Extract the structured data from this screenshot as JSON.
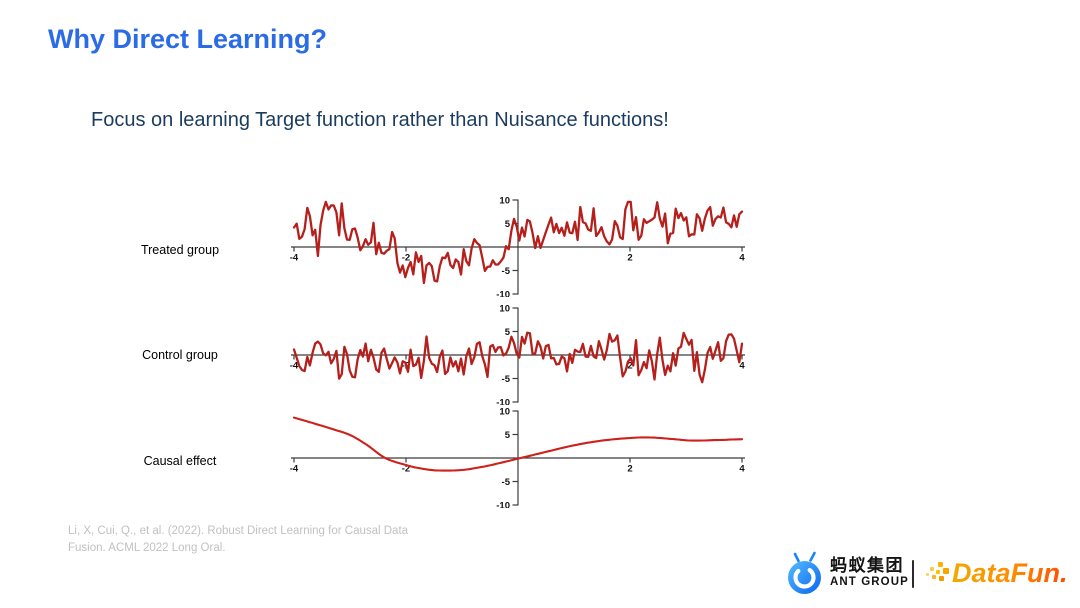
{
  "slide": {
    "title": "Why Direct Learning?",
    "subtitle": "Focus on learning Target function rather than Nuisance functions!",
    "citation": {
      "line1": "Li, X, Cui, Q., et al. (2022). Robust Direct Learning for Causal Data",
      "line2": "Fusion. ACML 2022 Long Oral."
    }
  },
  "footer": {
    "ant_group_cn": "蚂蚁集团",
    "ant_group_en": "ANT GROUP",
    "divider": "|",
    "datafun": "DataFun."
  },
  "colors": {
    "title_blue": "#2B6BE6",
    "subtitle_navy": "#1B3C5F",
    "noisy_line_red": "#B5201C",
    "causal_line_red": "#CE211B",
    "axis_gray": "#3C3C3C",
    "tick_label": "#141414",
    "citation_gray": "#C1C1C1"
  },
  "chart_data": [
    {
      "type": "line",
      "label": "Treated group",
      "x_range": [
        -4,
        4
      ],
      "y_range": [
        -10,
        10
      ],
      "x_ticks": [
        -4,
        -2,
        2,
        4
      ],
      "y_ticks": [
        10,
        5,
        -5,
        -10
      ],
      "color": "#B5201C",
      "noise_sd": 2.4,
      "smooth": false,
      "trend": [
        [
          -4,
          6.3
        ],
        [
          -3.6,
          6.6
        ],
        [
          -3.2,
          5.0
        ],
        [
          -2.9,
          3.0
        ],
        [
          -2.6,
          0.5
        ],
        [
          -2.3,
          -1.8
        ],
        [
          -1.9,
          -2.8
        ],
        [
          -1.5,
          -3.6
        ],
        [
          -1.1,
          -4.0
        ],
        [
          -0.7,
          -3.2
        ],
        [
          -0.4,
          -1.2
        ],
        [
          -0.1,
          1.8
        ],
        [
          0.1,
          3.2
        ],
        [
          0.5,
          3.0
        ],
        [
          0.9,
          3.6
        ],
        [
          1.3,
          4.2
        ],
        [
          1.7,
          4.4
        ],
        [
          2.1,
          4.6
        ],
        [
          2.5,
          4.8
        ],
        [
          2.9,
          5.2
        ],
        [
          3.3,
          5.6
        ],
        [
          3.7,
          4.2
        ],
        [
          4,
          4.6
        ]
      ]
    },
    {
      "type": "line",
      "label": "Control group",
      "x_range": [
        -4,
        4
      ],
      "y_range": [
        -10,
        10
      ],
      "x_ticks": [
        -4,
        -2,
        2,
        4
      ],
      "y_ticks": [
        10,
        5,
        -5,
        -10
      ],
      "color": "#B5201C",
      "noise_sd": 2.3,
      "smooth": false,
      "trend": [
        [
          -4,
          -0.3
        ],
        [
          -3.5,
          0.4
        ],
        [
          -3,
          -0.6
        ],
        [
          -2.5,
          -0.8
        ],
        [
          -2,
          -1.2
        ],
        [
          -1.5,
          -1.0
        ],
        [
          -1,
          -0.6
        ],
        [
          -0.5,
          0.2
        ],
        [
          -0.1,
          1.2
        ],
        [
          0.3,
          0.8
        ],
        [
          0.8,
          0.2
        ],
        [
          1.3,
          0.5
        ],
        [
          1.8,
          0.3
        ],
        [
          2.3,
          0.4
        ],
        [
          2.8,
          0.6
        ],
        [
          3.3,
          1.0
        ],
        [
          3.7,
          0.2
        ],
        [
          4,
          -0.4
        ]
      ]
    },
    {
      "type": "line",
      "label": "Causal effect",
      "x_range": [
        -4,
        4
      ],
      "y_range": [
        -10,
        10
      ],
      "x_ticks": [
        -4,
        -2,
        2,
        4
      ],
      "y_ticks": [
        10,
        5,
        -5,
        -10
      ],
      "color": "#CE211B",
      "noise_sd": 0,
      "smooth": true,
      "trend": [
        [
          -4,
          8.6
        ],
        [
          -3.6,
          7.2
        ],
        [
          -3.3,
          6.1
        ],
        [
          -3.0,
          4.9
        ],
        [
          -2.7,
          2.8
        ],
        [
          -2.37,
          0
        ],
        [
          -2.0,
          -1.5
        ],
        [
          -1.7,
          -2.3
        ],
        [
          -1.4,
          -2.67
        ],
        [
          -1.0,
          -2.55
        ],
        [
          -0.6,
          -1.8
        ],
        [
          -0.3,
          -1.0
        ],
        [
          0.05,
          0
        ],
        [
          0.5,
          1.3
        ],
        [
          1.0,
          2.7
        ],
        [
          1.5,
          3.7
        ],
        [
          2.05,
          4.3
        ],
        [
          2.4,
          4.35
        ],
        [
          2.8,
          4.0
        ],
        [
          3.1,
          3.7
        ],
        [
          3.5,
          3.8
        ],
        [
          4,
          4.0
        ]
      ]
    }
  ]
}
